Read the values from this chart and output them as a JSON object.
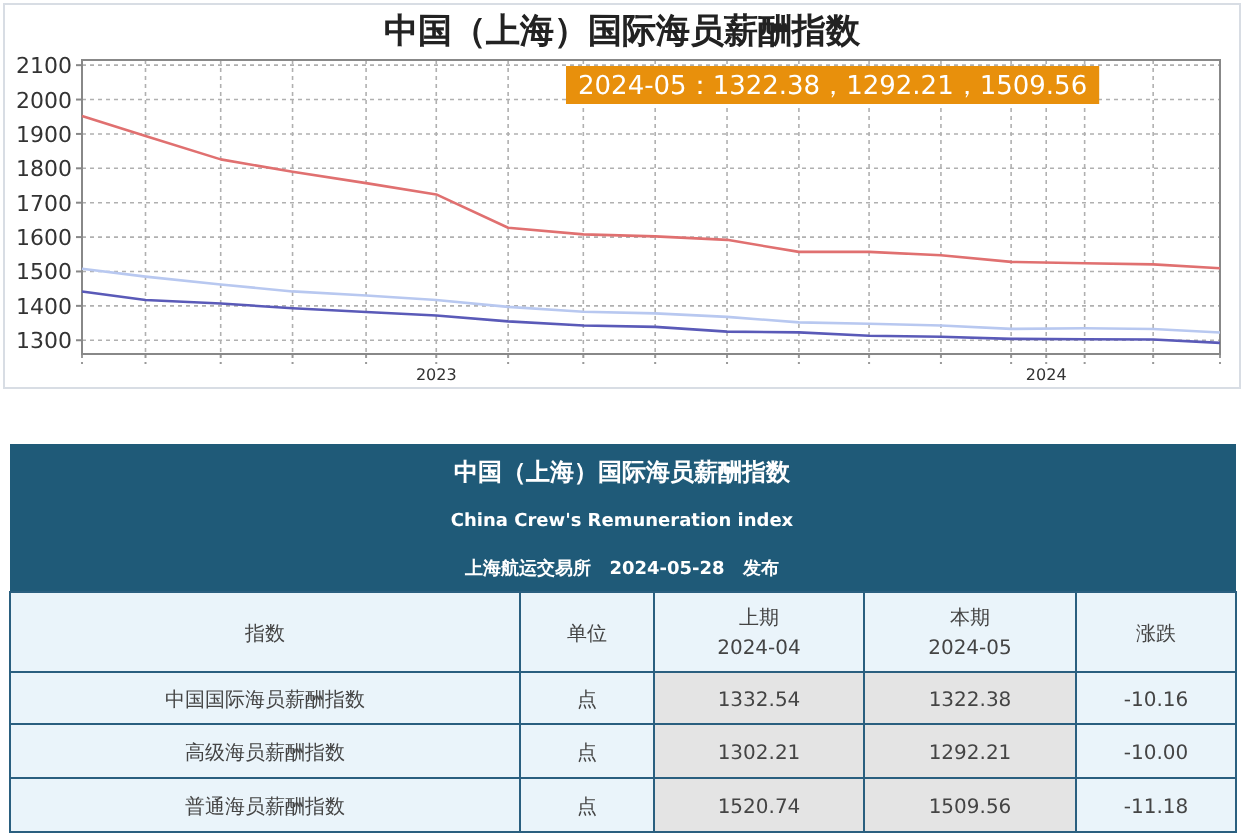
{
  "chart_data": [
    {
      "type": "line",
      "title": "中国（上海）国际海员薪酬指数",
      "x": [
        "2022-06-03",
        "2022-07-11",
        "2022-08-25",
        "2022-10-07",
        "2022-11-20",
        "2023-01-01",
        "2023-02-13",
        "2023-03-30",
        "2023-05-12",
        "2023-06-24",
        "2023-08-06",
        "2023-09-17",
        "2023-10-30",
        "2023-12-11",
        "2024-01-24",
        "2024-03-05",
        "2024-04-14"
      ],
      "series": [
        {
          "color": "#b8c8f0",
          "values": [
            1508,
            1485,
            1462,
            1442,
            1430,
            1417,
            1397,
            1383,
            1378,
            1368,
            1352,
            1348,
            1343,
            1333,
            1335,
            1332.54,
            1322.38
          ]
        },
        {
          "color": "#5a5ab8",
          "values": [
            1442,
            1417,
            1407,
            1393,
            1382,
            1372,
            1355,
            1343,
            1339,
            1325,
            1323,
            1313,
            1310,
            1304,
            1303,
            1302.21,
            1292.21
          ]
        },
        {
          "color": "#e07070",
          "values": [
            1952,
            1894,
            1826,
            1790,
            1757,
            1724,
            1627,
            1608,
            1602,
            1592,
            1557,
            1557,
            1547,
            1528,
            1524,
            1520.74,
            1509.56
          ]
        }
      ],
      "xlim": [
        "2022-06-03",
        "2024-04-14"
      ],
      "ylim": [
        1260,
        2115
      ],
      "yticks": [
        1300,
        1400,
        1500,
        1600,
        1700,
        1800,
        1900,
        2000,
        2100
      ],
      "xticks": [
        {
          "value": "2022-06-03",
          "label": null
        },
        {
          "value": "2022-07-11",
          "label": null
        },
        {
          "value": "2022-08-25",
          "label": null
        },
        {
          "value": "2022-10-07",
          "label": null
        },
        {
          "value": "2022-11-20",
          "label": null
        },
        {
          "value": "2023-01-01",
          "label": "2023"
        },
        {
          "value": "2023-02-13",
          "label": null
        },
        {
          "value": "2023-03-30",
          "label": null
        },
        {
          "value": "2023-05-12",
          "label": null
        },
        {
          "value": "2023-06-24",
          "label": null
        },
        {
          "value": "2023-08-06",
          "label": null
        },
        {
          "value": "2023-09-17",
          "label": null
        },
        {
          "value": "2023-10-30",
          "label": null
        },
        {
          "value": "2023-12-11",
          "label": null
        },
        {
          "value": "2024-01-01",
          "label": "2024"
        },
        {
          "value": "2024-01-24",
          "label": null
        },
        {
          "value": "2024-03-05",
          "label": null
        },
        {
          "value": "2024-04-14",
          "label": null
        }
      ],
      "grid": true,
      "annotations": [
        "2024-05：1322.38，1292.21，1509.56"
      ]
    },
    {
      "type": "other",
      "title": "中国（上海）国际海员薪酬指数",
      "subtitle": "China Crew's Remuneration index",
      "annotations": [
        "上海航运交易所　2024-05-28　发布",
        "指数",
        "单位",
        "上期",
        "2024-04",
        "本期",
        "2024-05",
        "涨跌",
        "中国国际海员薪酬指数",
        "点",
        "1332.54",
        "1322.38",
        "-10.16",
        "高级海员薪酬指数",
        "点",
        "1302.21",
        "1292.21",
        "-10.00",
        "普通海员薪酬指数",
        "点",
        "1520.74",
        "1509.56",
        "-11.18"
      ]
    }
  ]
}
